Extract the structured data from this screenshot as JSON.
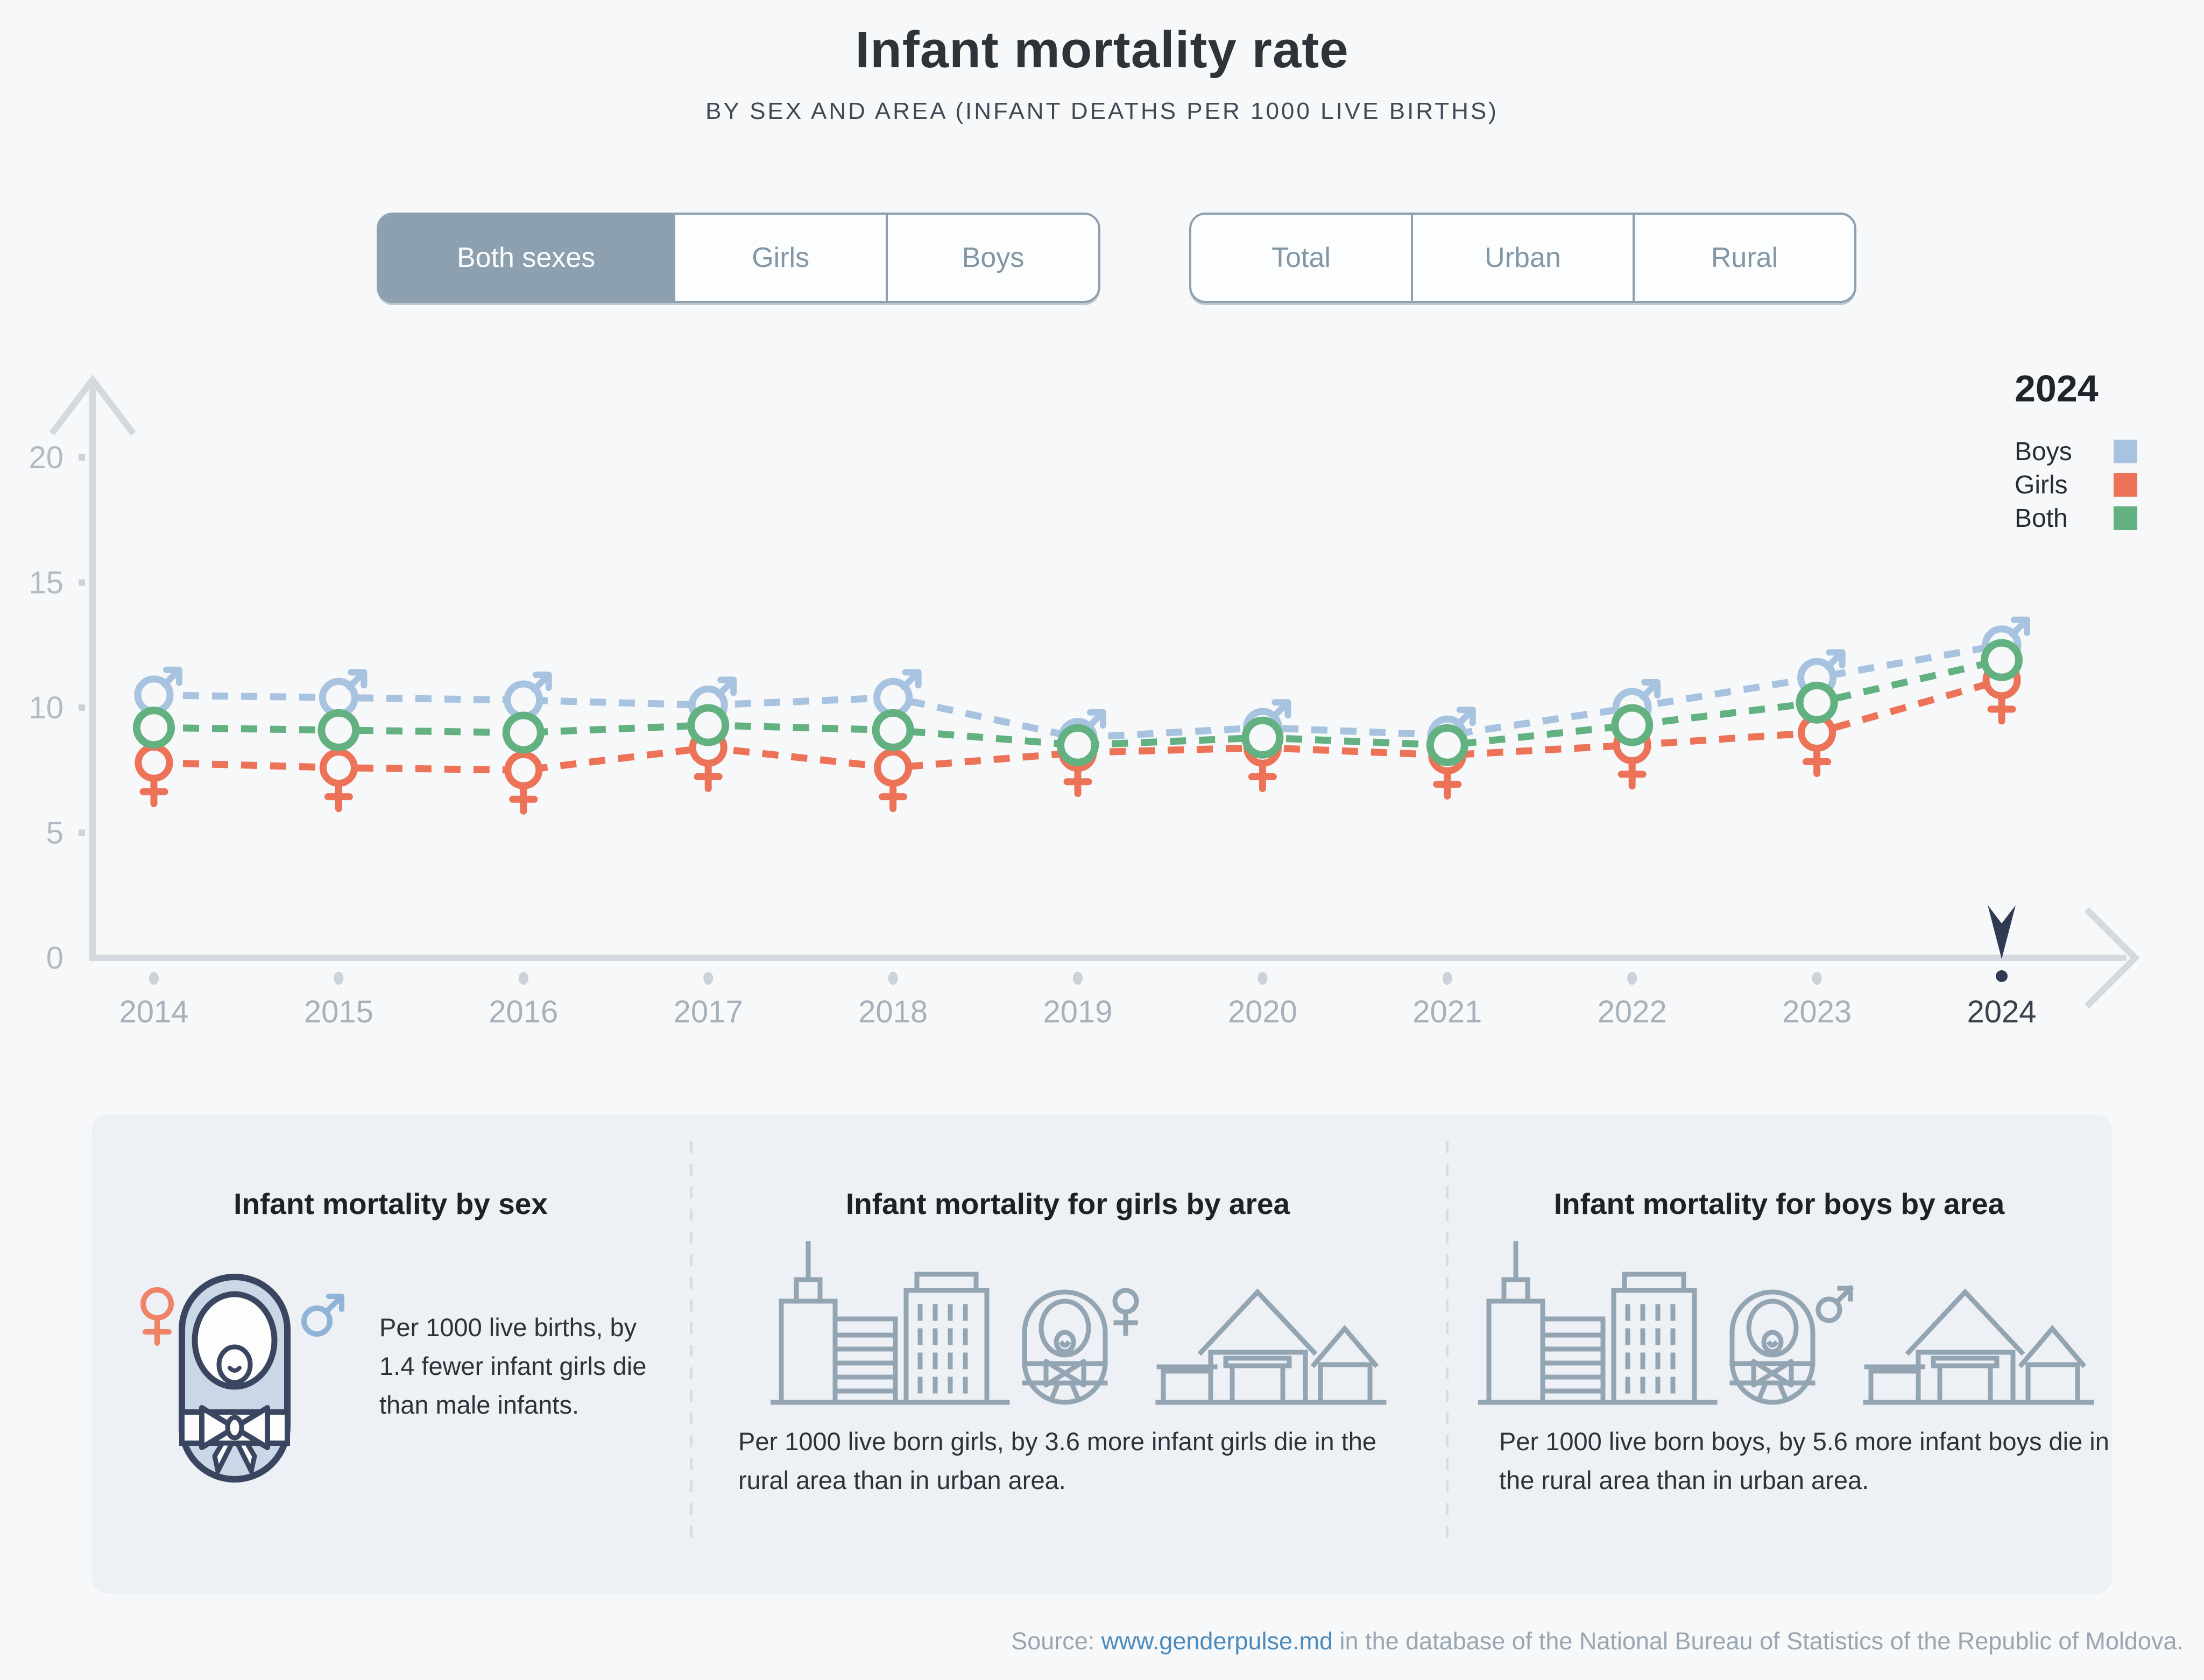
{
  "page": {
    "title": "Infant mortality rate",
    "subtitle": "BY SEX AND AREA (INFANT DEATHS PER 1000 LIVE BIRTHS)"
  },
  "filters": {
    "sex": {
      "options": [
        "Both sexes",
        "Girls",
        "Boys"
      ],
      "selected": "Both sexes"
    },
    "area": {
      "options": [
        "Total",
        "Urban",
        "Rural"
      ],
      "selected": null
    }
  },
  "legend": {
    "year": "2024",
    "items": [
      {
        "label": "Boys",
        "color": "#a7c3e0"
      },
      {
        "label": "Girls",
        "color": "#ec7258"
      },
      {
        "label": "Both",
        "color": "#63b181"
      }
    ]
  },
  "chart_data": {
    "type": "line",
    "title": "Infant mortality rate by sex, total area, 2014-2024",
    "x": [
      2014,
      2015,
      2016,
      2017,
      2018,
      2019,
      2020,
      2021,
      2022,
      2023,
      2024
    ],
    "series": [
      {
        "name": "Boys",
        "marker": "male-symbol",
        "color": "#a7c3e0",
        "values": [
          10.5,
          10.4,
          10.3,
          10.1,
          10.4,
          8.8,
          9.2,
          8.9,
          10.0,
          11.2,
          12.5
        ]
      },
      {
        "name": "Girls",
        "marker": "female-symbol",
        "color": "#ec7258",
        "values": [
          7.8,
          7.6,
          7.5,
          8.4,
          7.6,
          8.2,
          8.4,
          8.1,
          8.5,
          9.0,
          11.1
        ]
      },
      {
        "name": "Both",
        "marker": "circle",
        "color": "#63b181",
        "values": [
          9.2,
          9.1,
          9.0,
          9.3,
          9.1,
          8.5,
          8.8,
          8.5,
          9.3,
          10.2,
          11.9
        ]
      }
    ],
    "ylim": [
      0,
      22
    ],
    "yticks": [
      0,
      5,
      10,
      15,
      20
    ],
    "grid": false,
    "legend_position": "top-right",
    "selected_year": "2024",
    "line_style": "dashed"
  },
  "cards": [
    {
      "title": "Infant mortality by sex",
      "icons": [
        "female-symbol",
        "baby",
        "male-symbol"
      ],
      "text": "Per 1000 live births, by 1.4 fewer infant girls die than male infants."
    },
    {
      "title": "Infant mortality for girls by area",
      "icons": [
        "city-buildings",
        "baby",
        "female-symbol",
        "house"
      ],
      "text": "Per 1000 live born girls, by 3.6 more infant girls die in the rural area than in urban area."
    },
    {
      "title": "Infant mortality for boys by area",
      "icons": [
        "city-buildings",
        "baby",
        "male-symbol",
        "house"
      ],
      "text": "Per 1000 live born boys, by 5.6 more infant boys die in the rural area than in urban area."
    }
  ],
  "source": {
    "prefix": "Source: ",
    "link_text": "www.genderpulse.md",
    "suffix": " in the database of the National Bureau of Statistics of the Republic of Moldova."
  }
}
